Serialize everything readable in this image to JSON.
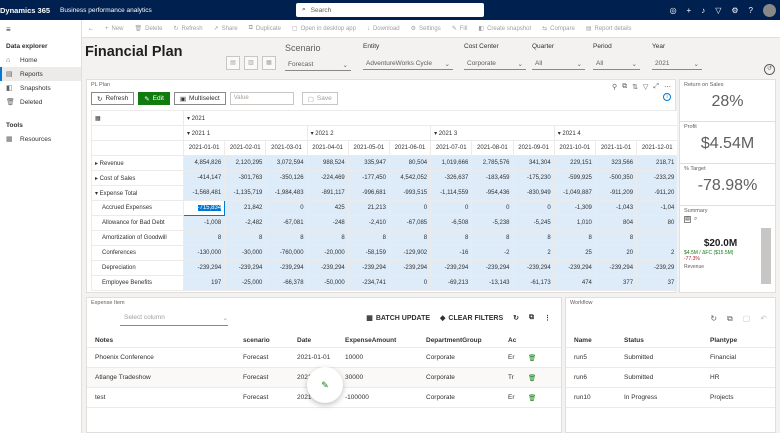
{
  "topbar": {
    "app_name": "Dynamics 365",
    "area_name": "Business performance analytics",
    "search_placeholder": "Search",
    "icons": [
      "waffle-icon",
      "search-icon",
      "target-icon",
      "plus-icon",
      "bell-icon",
      "filter-icon",
      "gear-icon",
      "help-icon",
      "avatar"
    ]
  },
  "sidebar": {
    "group1": "Data explorer",
    "items": [
      {
        "label": "Home",
        "icon": "home-icon"
      },
      {
        "label": "Reports",
        "icon": "report-icon",
        "active": true
      },
      {
        "label": "Snapshots",
        "icon": "snapshot-icon"
      },
      {
        "label": "Deleted",
        "icon": "trash-icon"
      }
    ],
    "group2": "Tools",
    "tools": [
      {
        "label": "Resources",
        "icon": "resources-icon"
      }
    ]
  },
  "commandbar": [
    {
      "label": "New",
      "icon": "+"
    },
    {
      "label": "Delete",
      "icon": "🗑"
    },
    {
      "label": "Refresh",
      "icon": "↻"
    },
    {
      "label": "Share",
      "icon": "↗"
    },
    {
      "label": "Duplicate",
      "icon": "⧉"
    },
    {
      "label": "Open in desktop app",
      "icon": "▢"
    },
    {
      "label": "Download",
      "icon": "↓"
    },
    {
      "label": "Settings",
      "icon": "⚙"
    },
    {
      "label": "Fill",
      "icon": "✎"
    },
    {
      "label": "Create snapshot",
      "icon": "◧"
    },
    {
      "label": "Compare",
      "icon": "⇆"
    },
    {
      "label": "Report details",
      "icon": "▤"
    }
  ],
  "page": {
    "title": "Financial Plan"
  },
  "filters": {
    "scenario": {
      "label": "Scenario",
      "value": "Forecast"
    },
    "entity": {
      "label": "Entity",
      "value": "AdventureWorks Cycle"
    },
    "cost_center": {
      "label": "Cost Center",
      "value": "Corporate"
    },
    "quarter": {
      "label": "Quarter",
      "value": "All"
    },
    "period": {
      "label": "Period",
      "value": "All"
    },
    "year": {
      "label": "Year",
      "value": "2021"
    }
  },
  "plplan": {
    "title": "PL Plan",
    "toolbar": {
      "refresh": "Refresh",
      "edit": "Edit",
      "multiselect": "Multiselect",
      "value_placeholder": "Value",
      "save": "Save"
    },
    "year_label": "2021",
    "quarters": [
      "2021 1",
      "2021 2",
      "2021 3",
      "2021 4"
    ],
    "dates": [
      "2021-01-01",
      "2021-02-01",
      "2021-03-01",
      "2021-04-01",
      "2021-05-01",
      "2021-06-01",
      "2021-07-01",
      "2021-08-01",
      "2021-09-01",
      "2021-10-01",
      "2021-11-01",
      "2021-12-01"
    ],
    "rows": [
      {
        "label": "Revenue",
        "expand": "▸",
        "indent": 0,
        "values": [
          "4,854,826",
          "2,120,295",
          "3,072,594",
          "988,524",
          "335,947",
          "80,504",
          "1,019,666",
          "2,785,576",
          "341,304",
          "229,151",
          "323,566",
          "218,71"
        ]
      },
      {
        "label": "Cost of Sales",
        "expand": "▸",
        "indent": 0,
        "values": [
          "-414,147",
          "-301,763",
          "-350,126",
          "-224,469",
          "-177,450",
          "4,542,052",
          "-326,637",
          "-183,459",
          "-175,230",
          "-599,925",
          "-500,350",
          "-233,29"
        ]
      },
      {
        "label": "Expense Total",
        "expand": "▾",
        "indent": 0,
        "values": [
          "-1,568,481",
          "-1,135,719",
          "-1,984,483",
          "-891,117",
          "-996,681",
          "-993,515",
          "-1,114,559",
          "-954,436",
          "-830,949",
          "-1,049,887",
          "-911,209",
          "-911,20"
        ]
      },
      {
        "label": "Accrued Expenses",
        "expand": "",
        "indent": 1,
        "values": [
          "-715,834",
          "21,842",
          "0",
          "425",
          "21,213",
          "0",
          "0",
          "0",
          "0",
          "-1,309",
          "-1,043",
          "-1,04"
        ]
      },
      {
        "label": "Allowance for Bad Debt",
        "expand": "",
        "indent": 1,
        "values": [
          "-1,008",
          "-2,482",
          "-67,081",
          "-248",
          "-2,410",
          "-67,085",
          "-6,508",
          "-5,238",
          "-5,245",
          "1,010",
          "804",
          "80"
        ]
      },
      {
        "label": "Amortization of Goodwill",
        "expand": "",
        "indent": 1,
        "values": [
          "8",
          "8",
          "8",
          "8",
          "8",
          "8",
          "8",
          "8",
          "8",
          "8",
          "8",
          ""
        ]
      },
      {
        "label": "Conferences",
        "expand": "",
        "indent": 1,
        "values": [
          "-130,000",
          "-30,000",
          "-760,000",
          "-20,000",
          "-58,159",
          "-129,902",
          "-16",
          "-2",
          "2",
          "25",
          "20",
          "2"
        ]
      },
      {
        "label": "Depreciation",
        "expand": "",
        "indent": 1,
        "values": [
          "-239,294",
          "-239,294",
          "-239,294",
          "-239,294",
          "-239,294",
          "-239,294",
          "-239,294",
          "-239,294",
          "-239,294",
          "-239,294",
          "-239,294",
          "-239,29"
        ]
      },
      {
        "label": "Employee Benefits",
        "expand": "",
        "indent": 1,
        "values": [
          "197",
          "-25,000",
          "-66,378",
          "-50,000",
          "-234,741",
          "0",
          "-69,213",
          "-13,143",
          "-61,173",
          "474",
          "377",
          "37"
        ]
      }
    ]
  },
  "kpis": {
    "return_on_sales": {
      "label": "Return on Sales",
      "value": "28%"
    },
    "profit": {
      "label": "Profit",
      "value": "$4.54M"
    },
    "pct_target": {
      "label": "% Target",
      "value": "-78.98%"
    },
    "summary": {
      "label": "Summary",
      "value": "$20.0M",
      "sub1": "$4.5M / ΔFC ($15.5M)",
      "sub2": "-77.3%",
      "series": "Revenue"
    }
  },
  "expense": {
    "title": "Expense Item",
    "select_placeholder": "Select column",
    "batch_update": "BATCH UPDATE",
    "clear_filters": "CLEAR FILTERS",
    "columns": [
      "Notes",
      "scenario",
      "Date",
      "ExpenseAmount",
      "DepartmentGroup",
      "Ac"
    ],
    "rows": [
      {
        "notes": "Phoenix Conference",
        "scenario": "Forecast",
        "date": "2021-01-01",
        "amount": "10000",
        "dept": "Corporate",
        "ac": "Er"
      },
      {
        "notes": "Atlange Tradeshow",
        "scenario": "Forecast",
        "date": "2021-01-01",
        "amount": "30000",
        "dept": "Corporate",
        "ac": "Tr"
      },
      {
        "notes": "test",
        "scenario": "Forecast",
        "date": "2021-01-01",
        "amount": "-100000",
        "dept": "Corporate",
        "ac": "Er"
      }
    ]
  },
  "workflow": {
    "title": "Workflow",
    "columns": [
      "Name",
      "Status",
      "Plantype"
    ],
    "rows": [
      {
        "name": "run5",
        "status": "Submitted",
        "plantype": "Financial"
      },
      {
        "name": "run6",
        "status": "Submitted",
        "plantype": "HR"
      },
      {
        "name": "run10",
        "status": "In Progress",
        "plantype": "Projects"
      }
    ]
  }
}
